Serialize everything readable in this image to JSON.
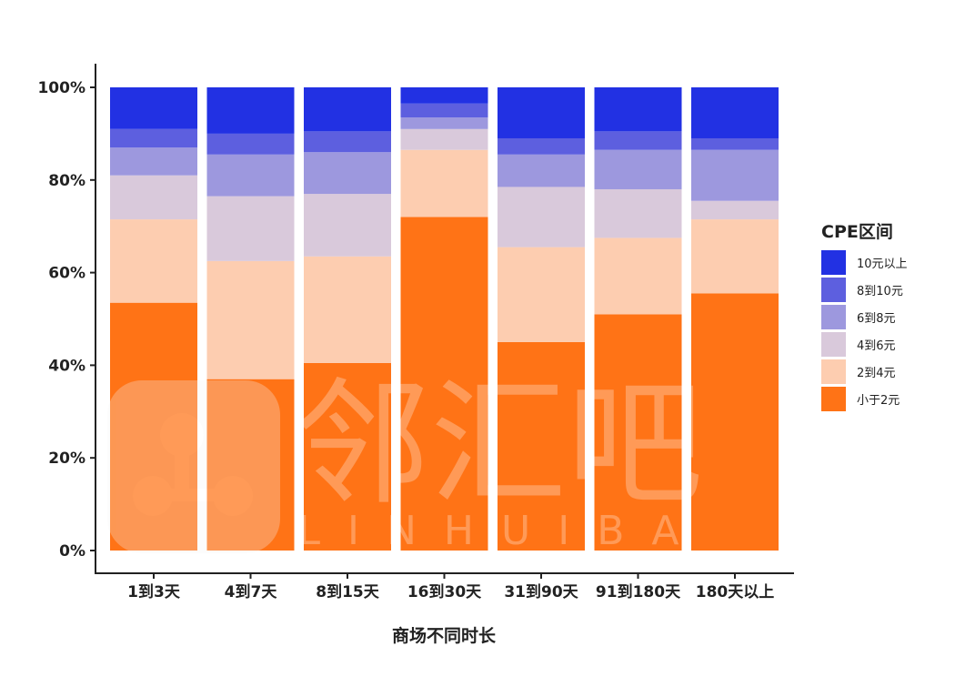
{
  "chart_data": {
    "type": "bar",
    "stacked": true,
    "normalized": true,
    "xlabel": "商场不同时长",
    "ylabel": "",
    "ylim": [
      0,
      100
    ],
    "yticks": [
      "0%",
      "20%",
      "40%",
      "60%",
      "80%",
      "100%"
    ],
    "categories": [
      "1到3天",
      "4到7天",
      "8到15天",
      "16到30天",
      "31到90天",
      "91到180天",
      "180天以上"
    ],
    "legend": {
      "title": "CPE区间",
      "position": "right"
    },
    "series": [
      {
        "name": "小于2元",
        "color": "#FF7316",
        "values": [
          53.5,
          37,
          40.5,
          72,
          45,
          51,
          55.5
        ]
      },
      {
        "name": "2到4元",
        "color": "#FDCDB0",
        "values": [
          18,
          25.5,
          23,
          14.5,
          20.5,
          16.5,
          16
        ]
      },
      {
        "name": "4到6元",
        "color": "#D9C9DB",
        "values": [
          9.5,
          14,
          13.5,
          4.5,
          13,
          10.5,
          4
        ]
      },
      {
        "name": "6到8元",
        "color": "#9D98DE",
        "values": [
          6,
          9,
          9,
          2.5,
          7,
          8.5,
          11
        ]
      },
      {
        "name": "8到10元",
        "color": "#5D5FDF",
        "values": [
          4,
          4.5,
          4.5,
          3,
          3.5,
          4,
          2.5
        ]
      },
      {
        "name": "10元以上",
        "color": "#2231E3",
        "values": [
          9,
          10,
          9.5,
          3.5,
          11,
          9.5,
          11
        ]
      }
    ]
  },
  "watermark": {
    "text_cn": "邻汇吧",
    "text_en": "LINHUIBA"
  }
}
